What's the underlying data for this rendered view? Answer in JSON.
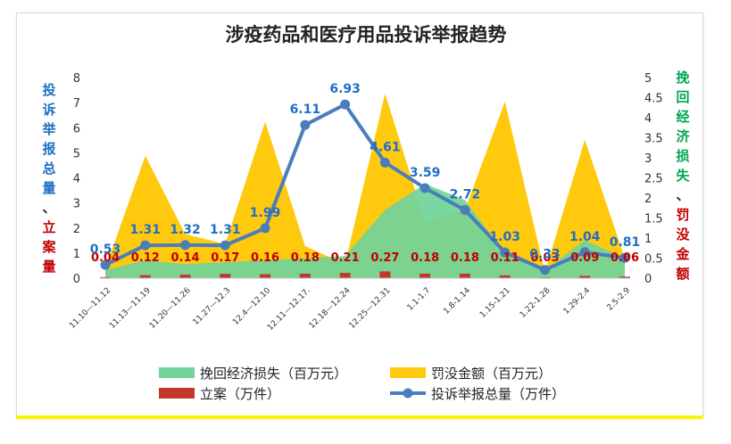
{
  "chart_data": {
    "type": "combo",
    "title": "涉疫药品和医疗用品投诉举报趋势",
    "left_axis_label": [
      "投",
      "诉",
      "举",
      "报",
      "总",
      "量",
      "、",
      "立",
      "案",
      "量"
    ],
    "right_axis_label": [
      "挽",
      "回",
      "经",
      "济",
      "损",
      "失",
      "、",
      "罚",
      "没",
      "金",
      "额"
    ],
    "left_ticks": [
      "0",
      "1",
      "2",
      "3",
      "4",
      "5",
      "6",
      "7",
      "8"
    ],
    "right_ticks": [
      "0",
      "0.5",
      "1",
      "1.5",
      "2",
      "2.5",
      "3",
      "3.5",
      "4",
      "4.5",
      "5"
    ],
    "ylim_left": [
      0,
      8
    ],
    "ylim_right": [
      0,
      5
    ],
    "categories": [
      "11.10—11.12",
      "11.13—11.19",
      "11.20—11.26",
      "11.27—12.3",
      "12.4—12.10",
      "12.11—12.17.",
      "12.18—12.24",
      "12.25—12.31",
      "1.1-1.7",
      "1.8-1.14",
      "1.15-1.21",
      "1.22-1.28",
      "1.29-2.4",
      "2.5-2.9"
    ],
    "series": [
      {
        "name": "挽回经济损失（百万元）",
        "type": "area",
        "axis": "right",
        "color": "#70d49a",
        "values": [
          0.2,
          0.45,
          0.35,
          0.4,
          0.45,
          0.5,
          0.55,
          1.7,
          2.35,
          1.95,
          0.6,
          0.2,
          0.95,
          0.5
        ]
      },
      {
        "name": "罚没金额（百万元）",
        "type": "area",
        "axis": "right",
        "color": "#ffc90e",
        "values": [
          0.25,
          3.05,
          1.1,
          0.85,
          3.9,
          0.8,
          0.35,
          4.6,
          1.4,
          1.7,
          4.4,
          0.15,
          3.45,
          0.5
        ]
      },
      {
        "name": "立案（万件）",
        "type": "bar",
        "axis": "left",
        "color": "#c0392b",
        "values": [
          0.04,
          0.12,
          0.14,
          0.17,
          0.16,
          0.18,
          0.21,
          0.27,
          0.18,
          0.18,
          0.11,
          0.03,
          0.09,
          0.06
        ],
        "labels": [
          "0.04",
          "0.12",
          "0.14",
          "0.17",
          "0.16",
          "0.18",
          "0.21",
          "0.27",
          "0.18",
          "0.18",
          "0.11",
          "0.03",
          "0.09",
          "0.06"
        ]
      },
      {
        "name": "投诉举报总量（万件）",
        "type": "line",
        "axis": "left",
        "color": "#4a7ebb",
        "values": [
          0.53,
          1.31,
          1.32,
          1.31,
          1.99,
          6.11,
          6.93,
          4.61,
          3.59,
          2.72,
          1.03,
          0.33,
          1.04,
          0.81
        ],
        "labels": [
          "0.53",
          "1.31",
          "1.32",
          "1.31",
          "1.99",
          "6.11",
          "6.93",
          "4.61",
          "3.59",
          "2.72",
          "1.03",
          "0.33",
          "1.04",
          "0.81"
        ]
      }
    ],
    "legend_position": "bottom",
    "grid": false
  },
  "colors": {
    "label_blue": "#1f6fc5",
    "label_red": "#c00000",
    "label_green": "#00a651",
    "axis_text": "#333333"
  }
}
